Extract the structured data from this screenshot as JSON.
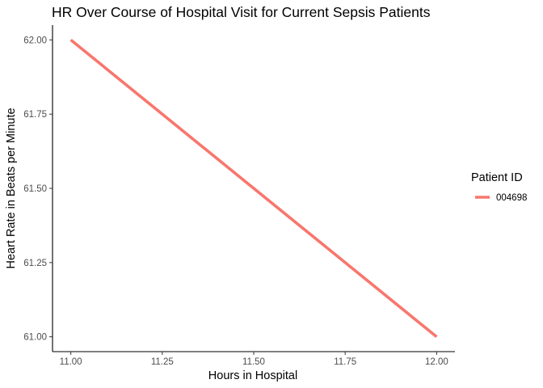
{
  "chart_data": {
    "type": "line",
    "title": "HR Over Course of Hospital Visit for Current Sepsis Patients",
    "xlabel": "Hours in Hospital",
    "ylabel": "Heart Rate in Beats per Minute",
    "xlim": [
      10.95,
      12.05
    ],
    "ylim": [
      60.95,
      62.05
    ],
    "x_ticks": [
      {
        "value": 11.0,
        "label": "11.00"
      },
      {
        "value": 11.25,
        "label": "11.25"
      },
      {
        "value": 11.5,
        "label": "11.50"
      },
      {
        "value": 11.75,
        "label": "11.75"
      },
      {
        "value": 12.0,
        "label": "12.00"
      }
    ],
    "y_ticks": [
      {
        "value": 61.0,
        "label": "61.00"
      },
      {
        "value": 61.25,
        "label": "61.25"
      },
      {
        "value": 61.5,
        "label": "61.50"
      },
      {
        "value": 61.75,
        "label": "61.75"
      },
      {
        "value": 62.0,
        "label": "62.00"
      }
    ],
    "grid": false,
    "legend": {
      "title": "Patient ID",
      "placement": "right"
    },
    "series": [
      {
        "name": "004698",
        "color": "#f8766d",
        "points": [
          {
            "x": 11.0,
            "y": 62.0
          },
          {
            "x": 12.0,
            "y": 61.0
          }
        ]
      }
    ]
  }
}
